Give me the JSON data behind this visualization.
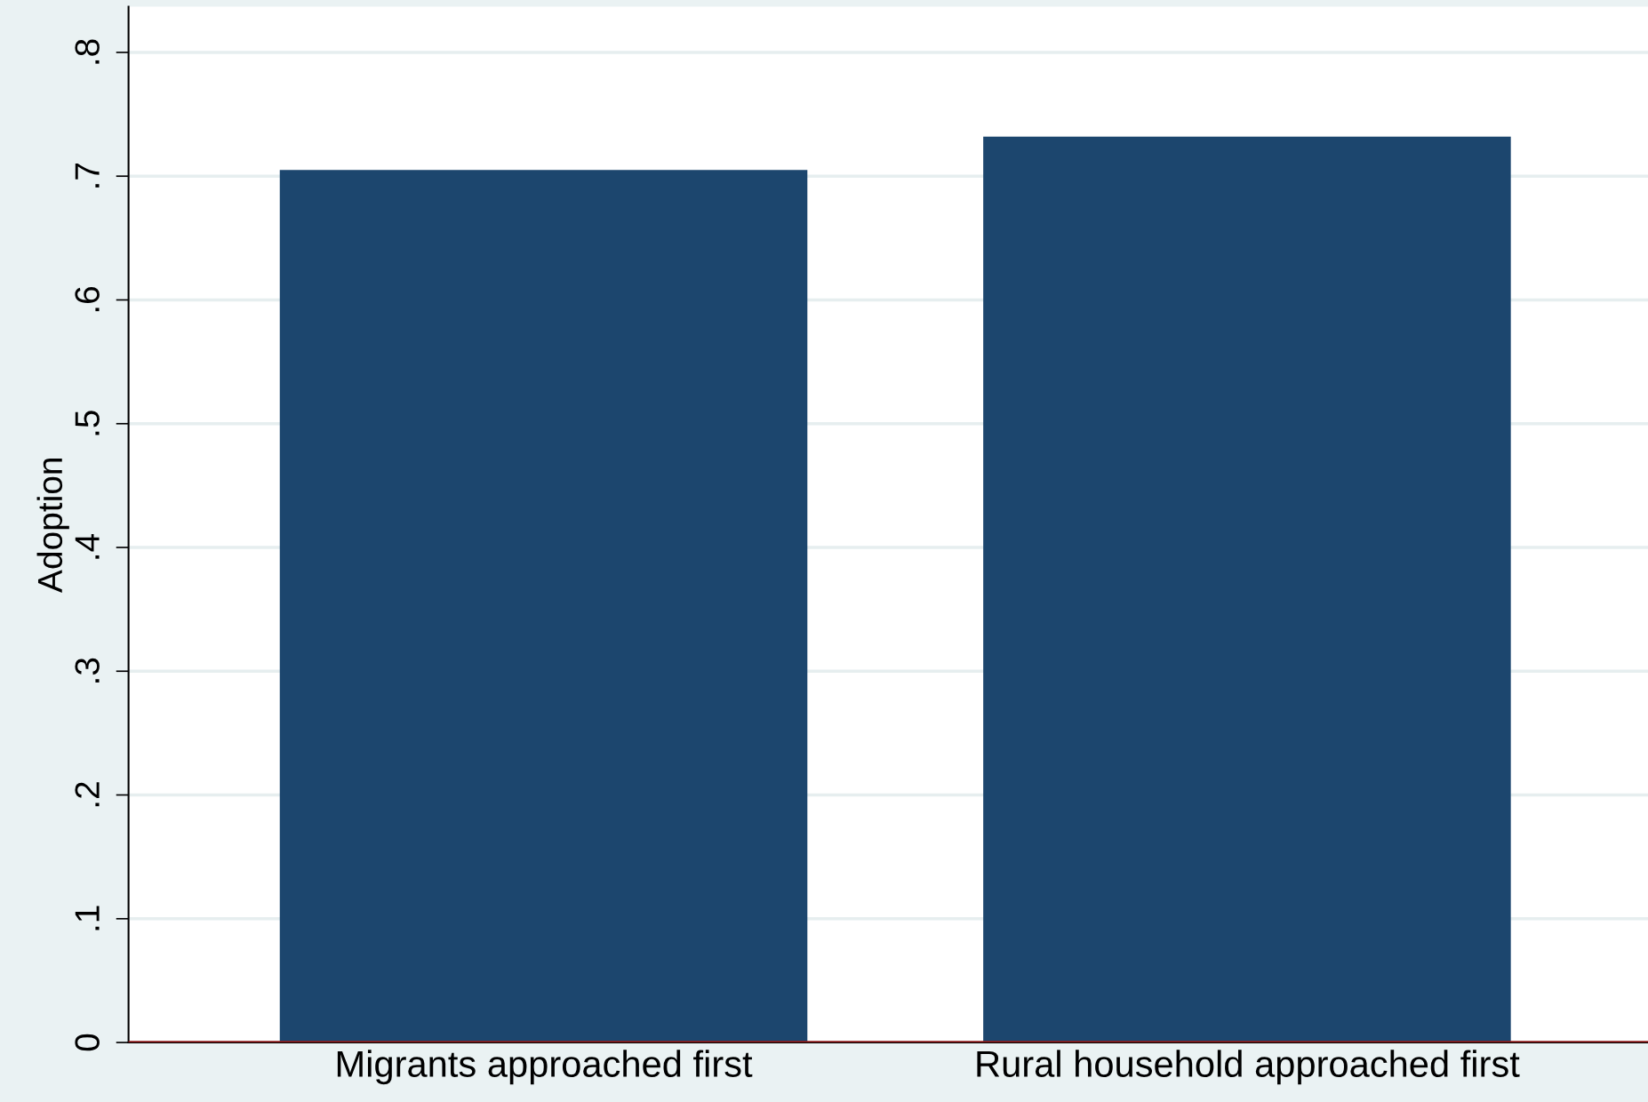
{
  "chart_data": {
    "type": "bar",
    "ylabel": "Adoption",
    "categories": [
      "Migrants approached first",
      "Rural household approached first"
    ],
    "values": [
      0.705,
      0.732
    ],
    "color": "#1c466e",
    "ylim": [
      0,
      0.837
    ],
    "yticks": [
      {
        "value": 0,
        "label": "0"
      },
      {
        "value": 0.1,
        "label": ".1"
      },
      {
        "value": 0.2,
        "label": ".2"
      },
      {
        "value": 0.3,
        "label": ".3"
      },
      {
        "value": 0.4,
        "label": ".4"
      },
      {
        "value": 0.5,
        "label": ".5"
      },
      {
        "value": 0.6,
        "label": ".6"
      },
      {
        "value": 0.7,
        "label": ".7"
      },
      {
        "value": 0.8,
        "label": ".8"
      }
    ],
    "grid": "y",
    "ref_lines": [
      {
        "axis": "y",
        "value": 0,
        "color": "#8b1a1a"
      }
    ]
  }
}
